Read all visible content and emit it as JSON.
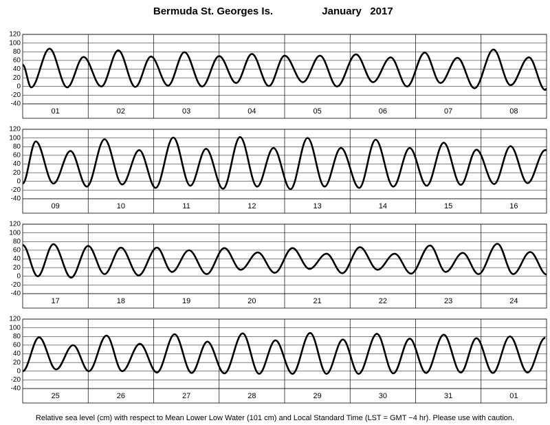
{
  "header": {
    "location": "Bermuda St. Georges Is.",
    "period": "January   2017"
  },
  "footnote": "Relative sea level (cm) with respect to Mean Lower Low Water (101 cm) and Local Standard Time (LST = GMT −4 hr). Please use with caution.",
  "chart_data": [
    {
      "type": "line",
      "categories": [
        "01",
        "02",
        "03",
        "04",
        "05",
        "06",
        "07",
        "08"
      ],
      "x": [
        0,
        0.13,
        0.41,
        0.68,
        0.93,
        1.2,
        1.46,
        1.72,
        1.96,
        2.22,
        2.47,
        2.74,
        3.0,
        3.26,
        3.5,
        3.76,
        4.0,
        4.28,
        4.54,
        4.8,
        5.09,
        5.35,
        5.62,
        5.87,
        6.14,
        6.38,
        6.64,
        6.9,
        7.19,
        7.45,
        7.73,
        7.98,
        8
      ],
      "series": [
        {
          "color": "#000000",
          "values": [
            50,
            -2,
            87,
            -2,
            68,
            0,
            83,
            -1,
            69,
            2,
            79,
            0,
            70,
            8,
            75,
            1,
            71,
            10,
            71,
            0,
            74,
            10,
            67,
            0,
            78,
            8,
            66,
            -4,
            85,
            3,
            67,
            -8,
            -5
          ]
        }
      ],
      "xlim": [
        0,
        8
      ],
      "ylim": [
        -40,
        120
      ],
      "yticks": [
        -40,
        -20,
        0,
        20,
        40,
        60,
        80,
        100,
        120
      ],
      "grid": true
    },
    {
      "type": "line",
      "categories": [
        "09",
        "10",
        "11",
        "12",
        "13",
        "14",
        "15",
        "16"
      ],
      "x": [
        0,
        0.2,
        0.47,
        0.73,
        0.98,
        1.25,
        1.52,
        1.78,
        2.03,
        2.3,
        2.56,
        2.8,
        3.06,
        3.32,
        3.58,
        3.83,
        4.09,
        4.35,
        4.61,
        4.86,
        5.14,
        5.39,
        5.66,
        5.91,
        6.17,
        6.43,
        6.69,
        6.93,
        7.2,
        7.45,
        7.71,
        7.98,
        8
      ],
      "series": [
        {
          "color": "#000000",
          "values": [
            -5,
            92,
            -5,
            70,
            -12,
            97,
            -7,
            72,
            -15,
            101,
            -10,
            75,
            -17,
            102,
            -12,
            77,
            -18,
            100,
            -12,
            77,
            -15,
            96,
            -12,
            77,
            -10,
            89,
            -8,
            73,
            -6,
            81,
            -4,
            72,
            72
          ]
        }
      ],
      "xlim": [
        0,
        8
      ],
      "ylim": [
        -40,
        120
      ],
      "yticks": [
        -40,
        -20,
        0,
        20,
        40,
        60,
        80,
        100,
        120
      ],
      "grid": true
    },
    {
      "type": "line",
      "categories": [
        "17",
        "18",
        "19",
        "20",
        "21",
        "22",
        "23",
        "24"
      ],
      "x": [
        0,
        0.23,
        0.47,
        0.74,
        1.0,
        1.25,
        1.5,
        1.77,
        2.05,
        2.28,
        2.54,
        2.81,
        3.08,
        3.33,
        3.59,
        3.85,
        4.12,
        4.38,
        4.64,
        4.88,
        5.15,
        5.42,
        5.68,
        5.93,
        6.22,
        6.46,
        6.72,
        6.96,
        7.25,
        7.49,
        7.75,
        8.0
      ],
      "series": [
        {
          "color": "#000000",
          "values": [
            72,
            0,
            74,
            -3,
            70,
            5,
            66,
            2,
            66,
            10,
            60,
            5,
            65,
            15,
            55,
            8,
            65,
            17,
            52,
            7,
            67,
            15,
            52,
            6,
            71,
            10,
            54,
            5,
            75,
            5,
            56,
            4
          ]
        }
      ],
      "xlim": [
        0,
        8
      ],
      "ylim": [
        -40,
        120
      ],
      "yticks": [
        -40,
        -20,
        0,
        20,
        40,
        60,
        80,
        100,
        120
      ],
      "grid": true
    },
    {
      "type": "line",
      "categories": [
        "25",
        "26",
        "27",
        "28",
        "29",
        "30",
        "31",
        "01"
      ],
      "x": [
        0,
        0.25,
        0.51,
        0.77,
        1.01,
        1.28,
        1.52,
        1.79,
        2.05,
        2.32,
        2.58,
        2.82,
        3.08,
        3.36,
        3.61,
        3.86,
        4.12,
        4.39,
        4.64,
        4.89,
        5.13,
        5.41,
        5.66,
        5.91,
        6.16,
        6.43,
        6.69,
        6.93,
        7.18,
        7.44,
        7.71,
        7.98
      ],
      "series": [
        {
          "color": "#000000",
          "values": [
            0,
            78,
            4,
            60,
            0,
            82,
            0,
            63,
            -3,
            85,
            -4,
            68,
            -5,
            87,
            -6,
            71,
            -6,
            88,
            -6,
            73,
            -6,
            86,
            -5,
            75,
            -4,
            84,
            -3,
            76,
            -4,
            80,
            -3,
            77
          ]
        }
      ],
      "xlim": [
        0,
        8
      ],
      "ylim": [
        -40,
        120
      ],
      "yticks": [
        -40,
        -20,
        0,
        20,
        40,
        60,
        80,
        100,
        120
      ],
      "grid": true
    }
  ]
}
